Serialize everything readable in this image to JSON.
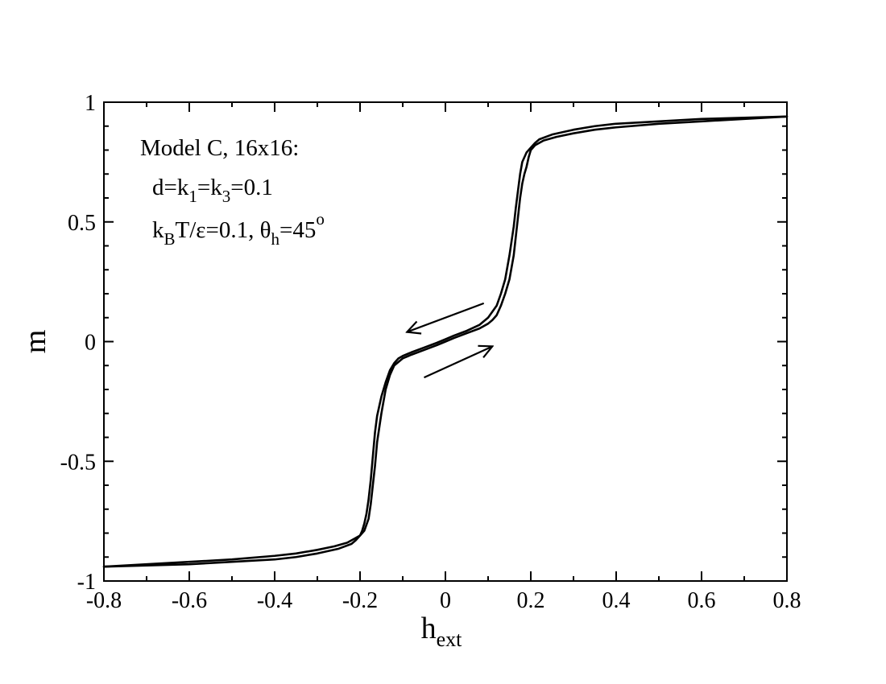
{
  "chart_data": {
    "type": "line",
    "xlabel": "h",
    "xlabel_subscript": "ext",
    "ylabel": "m",
    "xlim": [
      -0.8,
      0.8
    ],
    "ylim": [
      -1,
      1
    ],
    "xticks": [
      -0.8,
      -0.6,
      -0.4,
      -0.2,
      0,
      0.2,
      0.4,
      0.6,
      0.8
    ],
    "xtick_labels": [
      "-0.8",
      "-0.6",
      "-0.4",
      "-0.2",
      "0",
      "0.2",
      "0.4",
      "0.6",
      "0.8"
    ],
    "yticks": [
      -1,
      -0.5,
      0,
      0.5,
      1
    ],
    "ytick_labels": [
      "-1",
      "-0.5",
      "0",
      "0.5",
      "1"
    ],
    "grid": false,
    "annotation": {
      "line1": "Model C, 16x16:",
      "line2": {
        "a": "d=k",
        "a_sub": "1",
        "b": "=k",
        "b_sub": "3",
        "c": "=0.1"
      },
      "line3": {
        "a": "k",
        "a_sub": "B",
        "b": "T/ε=0.1, θ",
        "b_sub": "h",
        "c": "=45",
        "c_sup": "o"
      }
    },
    "arrows": [
      {
        "direction": "decreasing",
        "from": [
          0.09,
          0.16
        ],
        "to": [
          -0.09,
          0.04
        ]
      },
      {
        "direction": "increasing",
        "from": [
          -0.05,
          -0.15
        ],
        "to": [
          0.11,
          -0.02
        ]
      }
    ],
    "series": [
      {
        "direction": "increasing",
        "x": [
          -0.8,
          -0.7,
          -0.6,
          -0.5,
          -0.4,
          -0.35,
          -0.3,
          -0.26,
          -0.23,
          -0.21,
          -0.2,
          -0.195,
          -0.19,
          -0.185,
          -0.18,
          -0.175,
          -0.17,
          -0.165,
          -0.16,
          -0.155,
          -0.15,
          -0.14,
          -0.13,
          -0.12,
          -0.11,
          -0.1,
          -0.08,
          -0.05,
          -0.02,
          0,
          0.02,
          0.05,
          0.08,
          0.1,
          0.12,
          0.13,
          0.14,
          0.15,
          0.16,
          0.165,
          0.17,
          0.175,
          0.18,
          0.19,
          0.2,
          0.21,
          0.22,
          0.25,
          0.3,
          0.35,
          0.4,
          0.5,
          0.6,
          0.7,
          0.8
        ],
        "y": [
          -0.94,
          -0.93,
          -0.92,
          -0.91,
          -0.895,
          -0.885,
          -0.87,
          -0.855,
          -0.84,
          -0.82,
          -0.81,
          -0.79,
          -0.76,
          -0.72,
          -0.66,
          -0.58,
          -0.48,
          -0.38,
          -0.31,
          -0.27,
          -0.23,
          -0.17,
          -0.12,
          -0.09,
          -0.07,
          -0.06,
          -0.045,
          -0.025,
          -0.005,
          0.01,
          0.025,
          0.045,
          0.07,
          0.1,
          0.15,
          0.2,
          0.26,
          0.36,
          0.48,
          0.56,
          0.63,
          0.7,
          0.75,
          0.79,
          0.81,
          0.83,
          0.845,
          0.865,
          0.885,
          0.9,
          0.91,
          0.92,
          0.93,
          0.935,
          0.94
        ]
      },
      {
        "direction": "decreasing",
        "x": [
          0.8,
          0.7,
          0.6,
          0.5,
          0.4,
          0.35,
          0.3,
          0.26,
          0.23,
          0.21,
          0.2,
          0.195,
          0.19,
          0.185,
          0.18,
          0.175,
          0.17,
          0.165,
          0.16,
          0.155,
          0.15,
          0.14,
          0.13,
          0.12,
          0.11,
          0.1,
          0.08,
          0.05,
          0.02,
          0,
          -0.02,
          -0.05,
          -0.08,
          -0.1,
          -0.12,
          -0.13,
          -0.14,
          -0.15,
          -0.16,
          -0.165,
          -0.17,
          -0.175,
          -0.18,
          -0.19,
          -0.2,
          -0.21,
          -0.22,
          -0.25,
          -0.3,
          -0.35,
          -0.4,
          -0.5,
          -0.6,
          -0.7,
          -0.8
        ],
        "y": [
          0.94,
          0.93,
          0.92,
          0.91,
          0.895,
          0.885,
          0.87,
          0.855,
          0.84,
          0.82,
          0.8,
          0.77,
          0.73,
          0.7,
          0.66,
          0.6,
          0.52,
          0.44,
          0.36,
          0.31,
          0.26,
          0.2,
          0.15,
          0.11,
          0.09,
          0.075,
          0.055,
          0.035,
          0.015,
          0,
          -0.015,
          -0.035,
          -0.055,
          -0.07,
          -0.1,
          -0.14,
          -0.2,
          -0.3,
          -0.42,
          -0.52,
          -0.6,
          -0.68,
          -0.74,
          -0.79,
          -0.81,
          -0.83,
          -0.845,
          -0.865,
          -0.885,
          -0.9,
          -0.91,
          -0.92,
          -0.93,
          -0.935,
          -0.94
        ]
      }
    ]
  }
}
